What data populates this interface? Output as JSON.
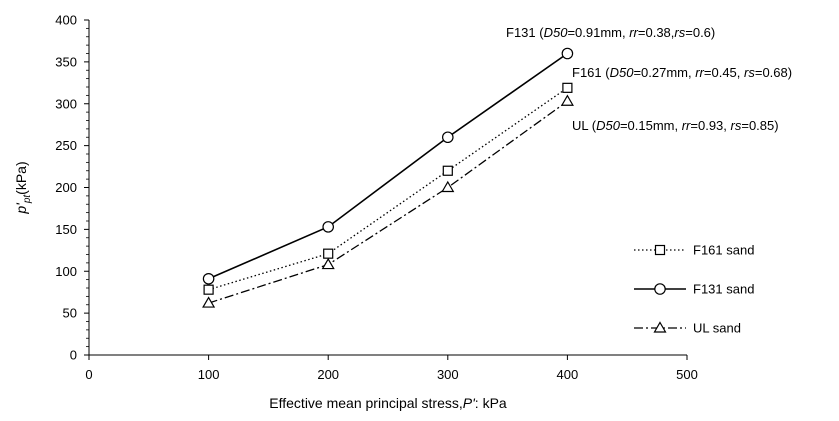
{
  "chart_data": {
    "type": "line",
    "x_label_prefix": "Effective mean principal stress,",
    "x_label_italic": "P'",
    "x_label_suffix": ": kPa",
    "y_label_main": "p'",
    "y_label_sub": "pt",
    "y_label_unit": "(kPa)",
    "xlim": [
      0,
      500
    ],
    "ylim": [
      0,
      400
    ],
    "x_ticks": [
      0,
      100,
      200,
      300,
      400,
      500
    ],
    "y_ticks": [
      0,
      50,
      100,
      150,
      200,
      250,
      300,
      350,
      400
    ],
    "grid": false,
    "legend_position": "right",
    "series": [
      {
        "name": "F161 sand",
        "marker": "square",
        "line": "dotted",
        "x": [
          100,
          200,
          300,
          400
        ],
        "y": [
          78,
          121,
          220,
          319
        ]
      },
      {
        "name": "F131 sand",
        "marker": "circle",
        "line": "solid",
        "x": [
          100,
          200,
          300,
          400
        ],
        "y": [
          91,
          153,
          260,
          360
        ]
      },
      {
        "name": "UL sand",
        "marker": "triangle",
        "line": "dashdot",
        "x": [
          100,
          200,
          300,
          400
        ],
        "y": [
          62,
          108,
          200,
          303
        ]
      }
    ],
    "annotations": [
      {
        "series": "F131 sand",
        "lead": "F131 (",
        "d50_label": "D50",
        "d50_value": "=0.91mm, ",
        "rr_label": "rr",
        "rr_value": "=0.38,",
        "rs_label": "rs",
        "rs_value": "=0.6)"
      },
      {
        "series": "F161 sand",
        "lead": "F161 (",
        "d50_label": "D50",
        "d50_value": "=0.27mm, ",
        "rr_label": "rr",
        "rr_value": "=0.45, ",
        "rs_label": "rs",
        "rs_value": "=0.68)"
      },
      {
        "series": "UL sand",
        "lead": "UL (",
        "d50_label": "D50",
        "d50_value": "=0.15mm, ",
        "rr_label": "rr",
        "rr_value": "=0.93, ",
        "rs_label": "rs",
        "rs_value": "=0.85)"
      }
    ]
  }
}
